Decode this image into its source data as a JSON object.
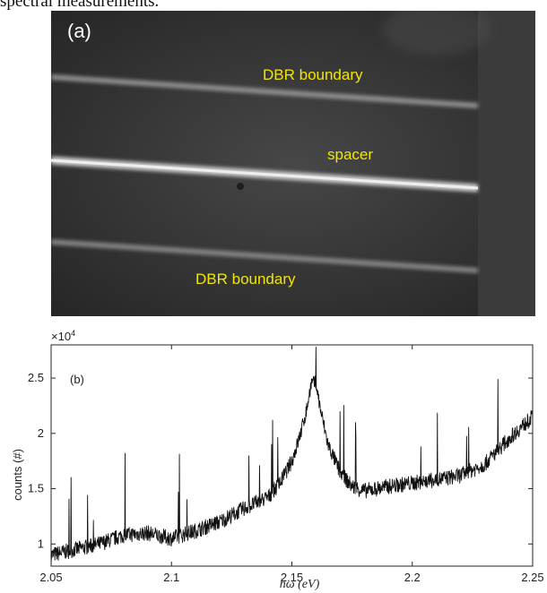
{
  "caption": {
    "text": "spectral measurements."
  },
  "panel_a": {
    "tag": "(a)",
    "labels": {
      "dbr_top": "DBR boundary",
      "spacer": "spacer",
      "dbr_bottom": "DBR boundary"
    },
    "label_color": "#f2e600"
  },
  "chart_data": {
    "type": "line",
    "panel_tag": "(b)",
    "title": "",
    "xlabel": "ħω (eV)",
    "ylabel": "counts (#)",
    "multiplier_label": "×10",
    "multiplier_exponent": "4",
    "xlim": [
      2.05,
      2.25
    ],
    "ylim": [
      0.8,
      2.8
    ],
    "y_units_scale": 10000,
    "xticks": [
      2.05,
      2.1,
      2.15,
      2.2,
      2.25
    ],
    "xtick_labels": [
      "2.05",
      "2.1",
      "2.15",
      "2.2",
      "2.25"
    ],
    "yticks": [
      1,
      1.5,
      2,
      2.5
    ],
    "ytick_labels": [
      "1",
      "1.5",
      "2",
      "2.5"
    ],
    "grid": false,
    "series": [
      {
        "color": "#111111",
        "x": [
          2.05,
          2.06,
          2.07,
          2.08,
          2.09,
          2.1,
          2.11,
          2.12,
          2.13,
          2.14,
          2.145,
          2.15,
          2.153,
          2.156,
          2.158,
          2.16,
          2.162,
          2.165,
          2.17,
          2.175,
          2.18,
          2.19,
          2.2,
          2.21,
          2.22,
          2.23,
          2.24,
          2.25
        ],
        "y": [
          0.9,
          0.95,
          1.0,
          1.08,
          1.1,
          1.05,
          1.12,
          1.2,
          1.32,
          1.42,
          1.55,
          1.75,
          1.95,
          2.2,
          2.45,
          2.45,
          2.2,
          1.9,
          1.65,
          1.52,
          1.48,
          1.52,
          1.55,
          1.58,
          1.62,
          1.72,
          1.95,
          2.15
        ]
      }
    ]
  }
}
